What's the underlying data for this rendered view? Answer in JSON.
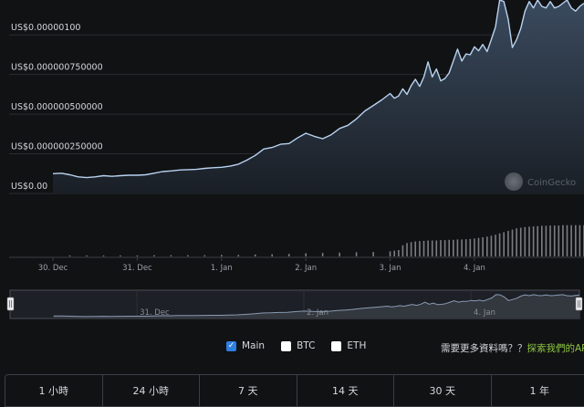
{
  "chart_data": {
    "type": "area",
    "y_tick_labels": [
      "US$0.00000100",
      "US$0.000000750000",
      "US$0.000000500000",
      "US$0.000000250000",
      "US$0.00"
    ],
    "y_tick_values": [
      1e-06,
      7.5e-07,
      5e-07,
      2.5e-07,
      0
    ],
    "ylim": [
      0,
      1.22e-06
    ],
    "x_tick_labels": [
      "30. Dec",
      "31. Dec",
      "1. Jan",
      "2. Jan",
      "3. Jan",
      "4. Jan"
    ],
    "x_range_days": [
      "29. Dec",
      "4. Jan"
    ],
    "grid": true,
    "series": [
      {
        "name": "Main",
        "x": [
          0,
          0.1,
          0.2,
          0.3,
          0.4,
          0.5,
          0.6,
          0.7,
          0.8,
          0.9,
          1.0,
          1.1,
          1.2,
          1.3,
          1.4,
          1.5,
          1.6,
          1.7,
          1.8,
          1.9,
          2.0,
          2.1,
          2.2,
          2.3,
          2.4,
          2.5,
          2.6,
          2.7,
          2.8,
          2.9,
          3.0,
          3.1,
          3.2,
          3.3,
          3.4,
          3.5,
          3.6,
          3.7,
          3.8,
          3.9,
          4.0,
          4.05,
          4.1,
          4.15,
          4.2,
          4.25,
          4.3,
          4.35,
          4.4,
          4.45,
          4.5,
          4.55,
          4.6,
          4.65,
          4.7,
          4.75,
          4.8,
          4.85,
          4.9,
          4.95,
          5.0,
          5.05,
          5.1,
          5.15,
          5.2,
          5.25,
          5.3,
          5.35,
          5.4,
          5.45,
          5.5,
          5.55,
          5.6,
          5.65,
          5.7,
          5.75,
          5.8,
          5.85,
          5.9,
          5.95,
          6.0,
          6.05,
          6.1,
          6.15,
          6.2,
          6.25,
          6.3
        ],
        "values": [
          1.25e-07,
          1.28e-07,
          1.18e-07,
          1.05e-07,
          1e-07,
          1.05e-07,
          1.12e-07,
          1.08e-07,
          1.12e-07,
          1.15e-07,
          1.15e-07,
          1.18e-07,
          1.28e-07,
          1.38e-07,
          1.42e-07,
          1.48e-07,
          1.5e-07,
          1.52e-07,
          1.58e-07,
          1.62e-07,
          1.65e-07,
          1.72e-07,
          1.85e-07,
          2.1e-07,
          2.4e-07,
          2.8e-07,
          2.9e-07,
          3.1e-07,
          3.15e-07,
          3.5e-07,
          3.8e-07,
          3.6e-07,
          3.45e-07,
          3.7e-07,
          4.1e-07,
          4.3e-07,
          4.7e-07,
          5.2e-07,
          5.55e-07,
          5.9e-07,
          6.3e-07,
          6e-07,
          6.15e-07,
          6.6e-07,
          6.25e-07,
          6.8e-07,
          7.2e-07,
          6.75e-07,
          7.35e-07,
          8.3e-07,
          7.35e-07,
          7.85e-07,
          7.1e-07,
          7.25e-07,
          7.6e-07,
          8.35e-07,
          9.1e-07,
          8.35e-07,
          8.8e-07,
          8.75e-07,
          9.25e-07,
          9e-07,
          9.4e-07,
          8.95e-07,
          9.7e-07,
          1.05e-06,
          1.22e-06,
          1.21e-06,
          1.1e-06,
          9.2e-07,
          9.7e-07,
          1.04e-06,
          1.15e-06,
          1.21e-06,
          1.17e-06,
          1.22e-06,
          1.18e-06,
          1.17e-06,
          1.21e-06,
          1.17e-06,
          1.18e-06,
          1.2e-06,
          1.22e-06,
          1.17e-06,
          1.15e-06,
          1.18e-06,
          1.2e-06
        ]
      }
    ],
    "volume": {
      "x": [
        0.2,
        0.4,
        0.6,
        0.8,
        1.0,
        1.2,
        1.4,
        1.6,
        1.8,
        2.0,
        2.2,
        2.4,
        2.6,
        2.8,
        3.0,
        3.2,
        3.4,
        3.6,
        3.8,
        4.0,
        4.05,
        4.1,
        4.15,
        4.2,
        4.25,
        4.3,
        4.35,
        4.4,
        4.45,
        4.5,
        4.55,
        4.6,
        4.65,
        4.7,
        4.75,
        4.8,
        4.85,
        4.9,
        4.95,
        5.0,
        5.05,
        5.1,
        5.15,
        5.2,
        5.25,
        5.3,
        5.35,
        5.4,
        5.45,
        5.5,
        5.55,
        5.6,
        5.65,
        5.7,
        5.75,
        5.8,
        5.85,
        5.9,
        5.95,
        6.0,
        6.05,
        6.1,
        6.15,
        6.2,
        6.25,
        6.3
      ],
      "values": [
        0.03,
        0.03,
        0.03,
        0.03,
        0.03,
        0.04,
        0.04,
        0.04,
        0.04,
        0.05,
        0.05,
        0.06,
        0.07,
        0.08,
        0.1,
        0.11,
        0.12,
        0.13,
        0.14,
        0.16,
        0.18,
        0.2,
        0.35,
        0.42,
        0.45,
        0.47,
        0.48,
        0.49,
        0.5,
        0.5,
        0.5,
        0.51,
        0.51,
        0.52,
        0.52,
        0.53,
        0.53,
        0.54,
        0.55,
        0.56,
        0.58,
        0.6,
        0.62,
        0.65,
        0.68,
        0.72,
        0.76,
        0.8,
        0.84,
        0.88,
        0.9,
        0.92,
        0.93,
        0.94,
        0.95,
        0.96,
        0.96,
        0.97,
        0.97,
        0.97,
        0.98,
        0.98,
        0.98,
        0.98,
        0.98,
        0.98
      ]
    },
    "navigator_labels": [
      "31. Dec",
      "2. Jan",
      "4. Jan"
    ],
    "watermark": "CoinGecko",
    "colors": {
      "line": "#b8d2f0",
      "area_top": "#3a4a5e",
      "area_bottom": "#1a1f26",
      "grid": "#2a2c30",
      "volume": "#7a7d82",
      "navigator_fill": "#33373e",
      "checkbox_checked": "#2f7fe0",
      "api_link": "#8dc63f"
    }
  },
  "legend": {
    "items": [
      {
        "label": "Main",
        "checked": true
      },
      {
        "label": "BTC",
        "checked": false
      },
      {
        "label": "ETH",
        "checked": false
      }
    ]
  },
  "more_data": {
    "text": "需要更多資料嗎？？",
    "link": "探索我們的AP"
  },
  "range_buttons": [
    "1 小時",
    "24 小時",
    "7 天",
    "14 天",
    "30 天",
    "1 年"
  ]
}
